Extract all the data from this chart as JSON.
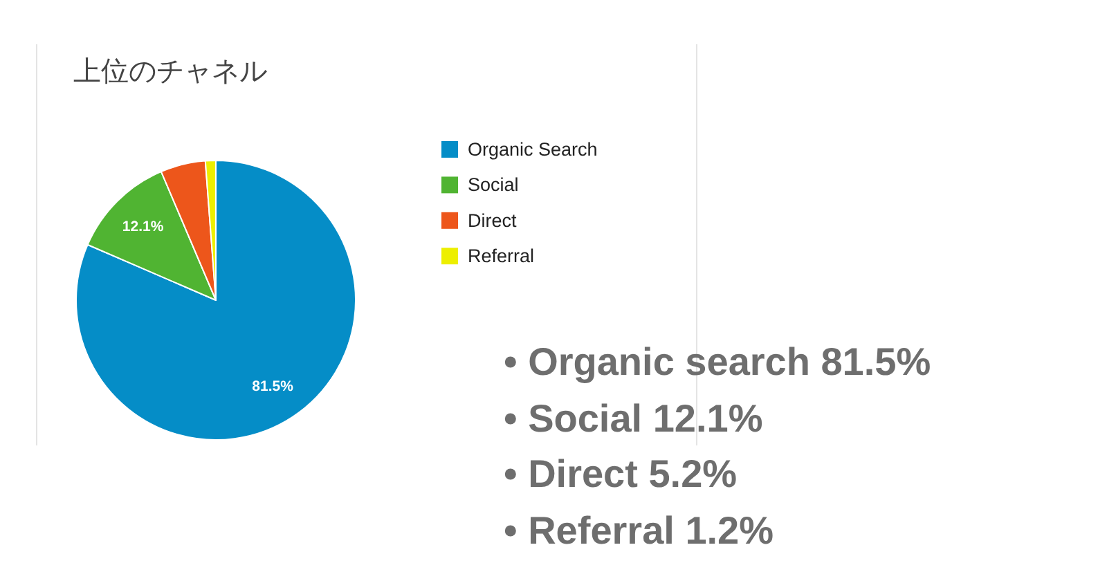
{
  "chart_data": {
    "type": "pie",
    "title": "上位のチャネル",
    "categories": [
      "Organic Search",
      "Social",
      "Direct",
      "Referral"
    ],
    "values": [
      81.5,
      12.1,
      5.2,
      1.2
    ],
    "colors": [
      "#058dc7",
      "#50b432",
      "#ed561b",
      "#edef00"
    ],
    "value_labels": [
      "81.5%",
      "12.1%",
      null,
      null
    ],
    "legend": "right",
    "annotations": [
      "• Organic search 81.5%",
      "• Social 12.1%",
      "• Direct 5.2%",
      "• Referral 1.2%"
    ]
  }
}
